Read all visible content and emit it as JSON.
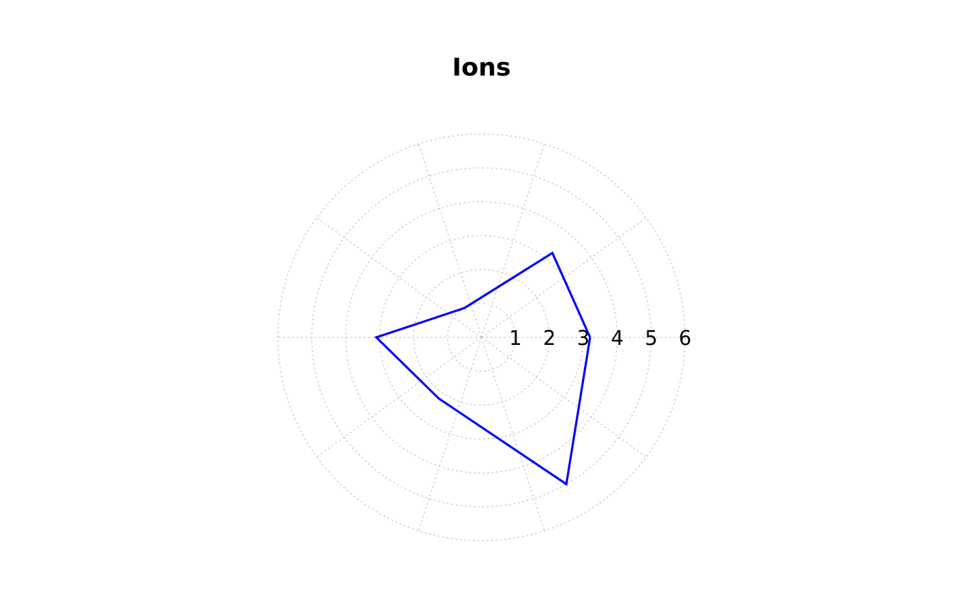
{
  "chart_data": {
    "type": "line",
    "projection": "polar",
    "title": "Ions",
    "angles_deg": [
      0,
      36,
      72,
      108,
      144,
      180,
      216,
      252,
      288,
      324
    ],
    "r_ticks": [
      "1",
      "2",
      "3",
      "4",
      "5",
      "6"
    ],
    "rlim": [
      0,
      6
    ],
    "grid": true,
    "series": [
      {
        "color": "#0000ff",
        "points": [
          {
            "theta_deg": 0,
            "r": 3.2
          },
          {
            "theta_deg": 50,
            "r": 3.25
          },
          {
            "theta_deg": 120,
            "r": 1.0
          },
          {
            "theta_deg": 180,
            "r": 3.1
          },
          {
            "theta_deg": 235,
            "r": 2.2
          },
          {
            "theta_deg": 300,
            "r": 5.0
          },
          {
            "theta_deg": 360,
            "r": 3.2
          }
        ]
      }
    ]
  }
}
